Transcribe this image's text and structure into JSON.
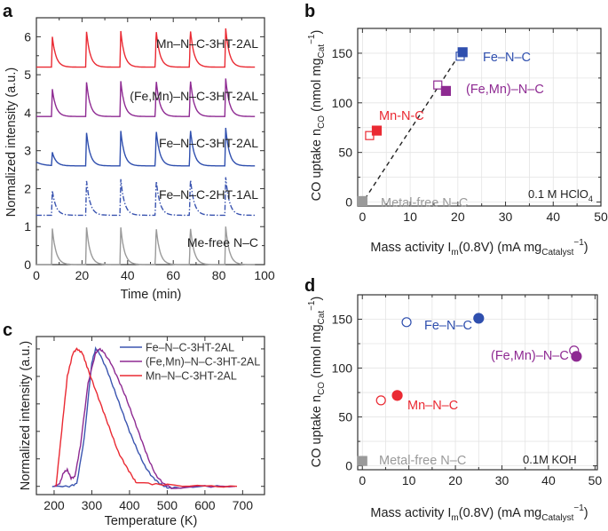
{
  "chart_data": [
    {
      "panel": "a",
      "type": "line",
      "xlabel": "Time (min)",
      "ylabel": "Normalized intensity (a.u.)",
      "xlim": [
        0,
        100
      ],
      "ylim": [
        0,
        6.5
      ],
      "xticks": [
        "0",
        "20",
        "40",
        "60",
        "80",
        "100"
      ],
      "yticks": [
        "0",
        "1",
        "2",
        "3",
        "4",
        "5",
        "6"
      ],
      "peak_times": [
        7,
        22,
        37,
        52.5,
        67.5,
        83
      ],
      "time_range": [
        0,
        96
      ],
      "series": [
        {
          "name": "Me-free N–C",
          "color": "#9a9a9a",
          "style": "solid",
          "baseline": 0.0,
          "peaks": [
            0.95,
            0.98,
            0.98,
            0.99,
            1.0,
            1.0
          ]
        },
        {
          "name": "Fe–N–C-2HT-1AL",
          "color": "#3b55b0",
          "style": "dashdot",
          "baseline": 1.3,
          "peaks": [
            1.95,
            2.2,
            2.25,
            2.25,
            2.28,
            2.3
          ]
        },
        {
          "name": "Fe–N–C-3HT-2AL",
          "color": "#2f4fae",
          "style": "solid",
          "baseline": 2.6,
          "start": 2.7,
          "peaks": [
            2.95,
            3.47,
            3.52,
            3.55,
            3.58,
            3.6
          ]
        },
        {
          "name": "(Fe,Mn)–N–C-3HT-2AL",
          "color": "#8e2a92",
          "style": "solid",
          "baseline": 3.9,
          "peaks": [
            4.62,
            4.8,
            4.83,
            4.87,
            4.88,
            4.9
          ]
        },
        {
          "name": "Mn–N–C-3HT-2AL",
          "color": "#ea2a33",
          "style": "solid",
          "baseline": 5.2,
          "peaks": [
            6.0,
            6.13,
            6.15,
            6.18,
            6.2,
            6.22
          ]
        }
      ]
    },
    {
      "panel": "b",
      "type": "scatter",
      "xlabel": {
        "pre": "Mass activity I",
        "sub": "m",
        "mid": "(0.8V) (mA mg",
        "sub2": "Catalyst",
        "sup": "−1",
        "post": ")"
      },
      "ylabel": {
        "pre": "CO uptake n",
        "sub": "CO",
        "mid": " (nmol mg",
        "sub2": "Cat",
        "sup": "−1",
        "post": ")"
      },
      "xlim": [
        -1,
        50
      ],
      "ylim": [
        -4,
        175
      ],
      "xticks": [
        "0",
        "10",
        "20",
        "30",
        "40",
        "50"
      ],
      "yticks": [
        "0",
        "50",
        "100",
        "150"
      ],
      "grid": true,
      "marker": "square",
      "annotation": {
        "pre": "0.1 M HClO",
        "sub": "4"
      },
      "fit_line": {
        "x": [
          0.5,
          20.5
        ],
        "y": [
          3,
          150
        ],
        "style": "dashed"
      },
      "series": [
        {
          "name": "Fe–N–C",
          "color": "#2f4fae",
          "open": [
            20.5,
            147
          ],
          "filled": [
            21,
            151
          ]
        },
        {
          "name": "(Fe,Mn)–N–C",
          "color": "#8e2a92",
          "open": [
            15.8,
            118
          ],
          "filled": [
            17.5,
            112
          ]
        },
        {
          "name": "Mn-N-C",
          "color": "#ea2a33",
          "open": [
            1.5,
            67
          ],
          "filled": [
            3,
            72
          ]
        },
        {
          "name": "Metal-free N–C",
          "color": "#9a9a9a",
          "filled": [
            0,
            1
          ]
        }
      ]
    },
    {
      "panel": "c",
      "type": "line",
      "xlabel": "Temperature (K)",
      "ylabel": "Normalized intensity (a.u.)",
      "xlim": [
        153,
        758
      ],
      "ylim": [
        -0.06,
        1.09
      ],
      "xticks": [
        "200",
        "300",
        "400",
        "500",
        "600",
        "700"
      ],
      "legend": "top-right",
      "series": [
        {
          "name": "Fe–N–C-3HT-2AL",
          "color": "#3b55b0",
          "x": [
            195,
            240,
            260,
            280,
            300,
            310,
            320,
            340,
            360,
            380,
            400,
            420,
            440,
            460,
            480,
            500,
            520,
            600,
            680
          ],
          "y": [
            0,
            0,
            0.02,
            0.35,
            0.9,
            1.0,
            0.97,
            0.85,
            0.7,
            0.55,
            0.4,
            0.27,
            0.15,
            0.07,
            0.02,
            -0.01,
            -0.01,
            0,
            0
          ]
        },
        {
          "name": "(Fe,Mn)–N–C-3HT-2AL",
          "color": "#8e2a92",
          "x": [
            200,
            215,
            225,
            235,
            245,
            255,
            270,
            290,
            310,
            320,
            330,
            350,
            370,
            390,
            410,
            430,
            450,
            470,
            490,
            510,
            540,
            600,
            680
          ],
          "y": [
            0,
            0.02,
            0.1,
            0.12,
            0.06,
            0.07,
            0.3,
            0.75,
            0.97,
            1.0,
            0.98,
            0.9,
            0.78,
            0.65,
            0.5,
            0.35,
            0.2,
            0.08,
            0.02,
            -0.01,
            -0.01,
            0,
            0
          ]
        },
        {
          "name": "Mn–N–C-3HT-2AL",
          "color": "#ea2a33",
          "x": [
            205,
            220,
            235,
            250,
            260,
            275,
            290,
            310,
            330,
            350,
            370,
            390,
            410,
            420,
            450,
            500,
            600,
            685
          ],
          "y": [
            0,
            0.4,
            0.8,
            0.97,
            1.0,
            0.97,
            0.85,
            0.7,
            0.55,
            0.4,
            0.25,
            0.15,
            0.06,
            0.02,
            0.02,
            0.01,
            0,
            0
          ]
        }
      ]
    },
    {
      "panel": "d",
      "type": "scatter",
      "xlabel": {
        "pre": "Mass activity I",
        "sub": "m",
        "mid": "(0.8V) (mA mg",
        "sub2": "Catalyst",
        "sup": "−1",
        "post": ")"
      },
      "ylabel": {
        "pre": "CO uptake n",
        "sub": "CO",
        "mid": " (nmol mg",
        "sub2": "Cat",
        "sup": "−1",
        "post": ")"
      },
      "xlim": [
        -1,
        50.5
      ],
      "ylim": [
        -4,
        175
      ],
      "xticks": [
        "0",
        "10",
        "20",
        "30",
        "40",
        "50"
      ],
      "yticks": [
        "0",
        "50",
        "100",
        "150"
      ],
      "grid": true,
      "marker": "circle",
      "annotation": {
        "pre": "0.1M KOH",
        "sub": ""
      },
      "series": [
        {
          "name": "Fe–N–C",
          "color": "#2f4fae",
          "open": [
            9.5,
            147
          ],
          "filled": [
            25,
            151
          ]
        },
        {
          "name": "(Fe,Mn)–N–C",
          "color": "#8e2a92",
          "open": [
            45.5,
            118
          ],
          "filled": [
            46,
            112
          ]
        },
        {
          "name": "Mn–N–C",
          "color": "#ea2a33",
          "open": [
            4,
            67
          ],
          "filled": [
            7.5,
            72
          ]
        },
        {
          "name": "Metal-free N–C",
          "color": "#9a9a9a",
          "filled": [
            0,
            5
          ]
        }
      ]
    }
  ],
  "panel_letters": [
    "a",
    "b",
    "c",
    "d"
  ]
}
